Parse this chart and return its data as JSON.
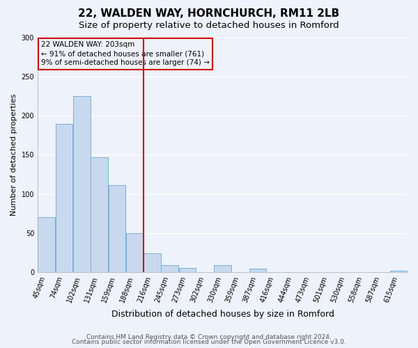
{
  "title": "22, WALDEN WAY, HORNCHURCH, RM11 2LB",
  "subtitle": "Size of property relative to detached houses in Romford",
  "xlabel": "Distribution of detached houses by size in Romford",
  "ylabel": "Number of detached properties",
  "bar_labels": [
    "45sqm",
    "74sqm",
    "102sqm",
    "131sqm",
    "159sqm",
    "188sqm",
    "216sqm",
    "245sqm",
    "273sqm",
    "302sqm",
    "330sqm",
    "359sqm",
    "387sqm",
    "416sqm",
    "444sqm",
    "473sqm",
    "501sqm",
    "530sqm",
    "558sqm",
    "587sqm",
    "615sqm"
  ],
  "bar_heights": [
    70,
    190,
    225,
    147,
    111,
    50,
    24,
    9,
    5,
    0,
    9,
    0,
    4,
    0,
    0,
    0,
    0,
    0,
    0,
    0,
    2
  ],
  "bar_color": "#c8d9ef",
  "bar_edge_color": "#7aafd4",
  "vline_color": "#cc0000",
  "vline_x_index": 6,
  "ylim": [
    0,
    300
  ],
  "yticks": [
    0,
    50,
    100,
    150,
    200,
    250,
    300
  ],
  "annotation_line1": "22 WALDEN WAY: 203sqm",
  "annotation_line2": "← 91% of detached houses are smaller (761)",
  "annotation_line3": "9% of semi-detached houses are larger (74) →",
  "box_edge_color": "#cc0000",
  "footnote1": "Contains HM Land Registry data © Crown copyright and database right 2024.",
  "footnote2": "Contains public sector information licensed under the Open Government Licence v3.0.",
  "bg_color": "#eef2fa",
  "grid_color": "#ffffff",
  "title_fontsize": 11,
  "subtitle_fontsize": 9.5,
  "xlabel_fontsize": 9,
  "ylabel_fontsize": 8,
  "tick_fontsize": 7,
  "annot_fontsize": 7.5,
  "footnote_fontsize": 6.5
}
